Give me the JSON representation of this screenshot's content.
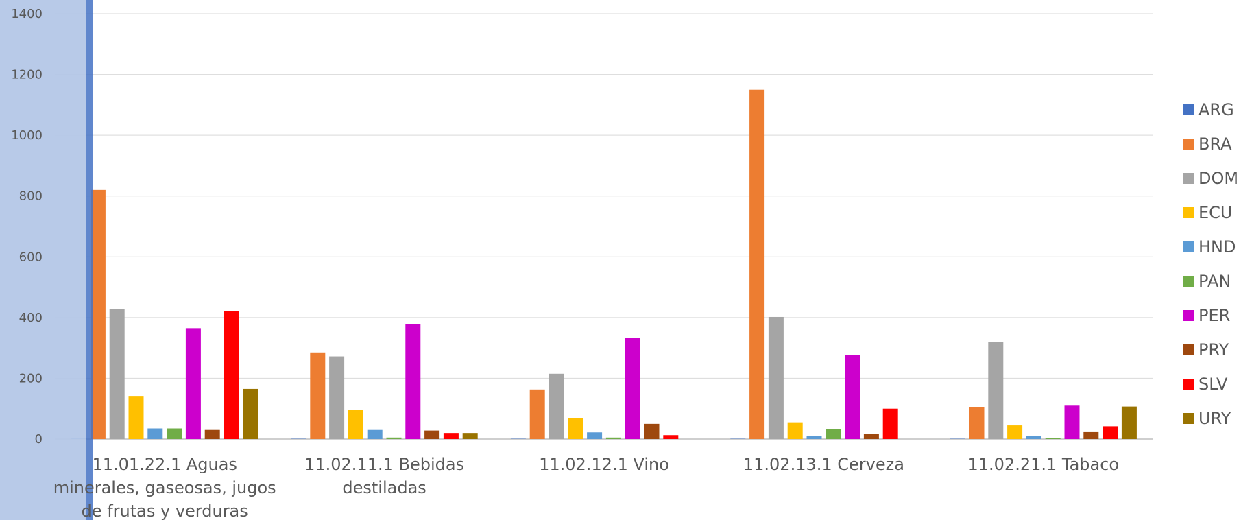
{
  "chart_data": {
    "type": "bar",
    "title": "",
    "xlabel": "",
    "ylabel": "",
    "ylim": [
      0,
      1400
    ],
    "yticks": [
      "0",
      "200",
      "400",
      "600",
      "800",
      "1000",
      "1200",
      "1400"
    ],
    "grid": true,
    "legend_position": "right",
    "categories": [
      [
        "11.01.22.1  Aguas",
        "minerales, gaseosas, jugos",
        "de frutas y verduras"
      ],
      [
        "11.02.11.1  Bebidas",
        "destiladas"
      ],
      [
        "11.02.12.1  Vino"
      ],
      [
        "11.02.13.1  Cerveza"
      ],
      [
        "11.02.21.1  Tabaco"
      ]
    ],
    "series": [
      {
        "name": "ARG",
        "color": "#4472C4",
        "values": [
          2,
          1,
          1,
          1,
          1
        ]
      },
      {
        "name": "BRA",
        "color": "#ED7D31",
        "values": [
          820,
          285,
          163,
          1150,
          105
        ]
      },
      {
        "name": "DOM",
        "color": "#A5A5A5",
        "values": [
          428,
          272,
          215,
          402,
          320
        ]
      },
      {
        "name": "ECU",
        "color": "#FFC000",
        "values": [
          142,
          97,
          70,
          55,
          45
        ]
      },
      {
        "name": "HND",
        "color": "#5B9BD5",
        "values": [
          35,
          30,
          22,
          10,
          10
        ]
      },
      {
        "name": "PAN",
        "color": "#70AD47",
        "values": [
          35,
          5,
          5,
          32,
          3
        ]
      },
      {
        "name": "PER",
        "color": "#CC00CC",
        "values": [
          365,
          378,
          333,
          277,
          110
        ]
      },
      {
        "name": "PRY",
        "color": "#9E480E",
        "values": [
          30,
          28,
          50,
          16,
          25
        ]
      },
      {
        "name": "SLV",
        "color": "#FF0000",
        "values": [
          420,
          20,
          13,
          100,
          42
        ]
      },
      {
        "name": "URY",
        "color": "#997300",
        "values": [
          165,
          20,
          0,
          0,
          107
        ]
      }
    ],
    "colors": {
      "grid": "#D9D9D9",
      "axis": "#BFBFBF",
      "text": "#595959",
      "overlay_light": "#B4C7E7",
      "overlay_dark": "#4472C4"
    }
  }
}
